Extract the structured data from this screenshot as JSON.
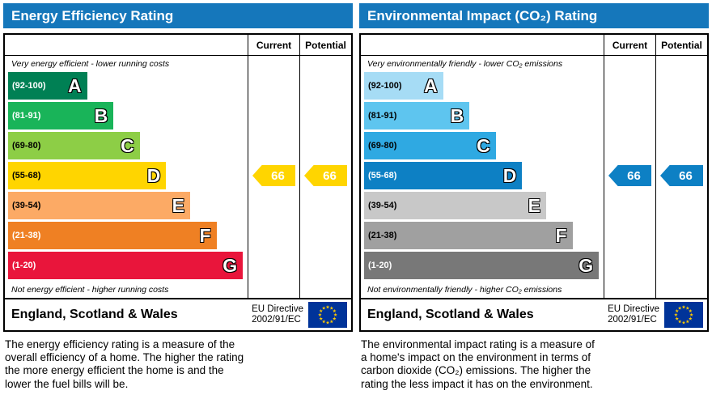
{
  "labels": {
    "current": "Current",
    "potential": "Potential"
  },
  "theme": {
    "header_bg": "#1577bb",
    "header_text": "#ffffff",
    "border_color": "#000000",
    "eu_flag_bg": "#003399",
    "eu_flag_stars": "#ffcc00"
  },
  "chart_data": [
    {
      "type": "bar",
      "title": "Energy Efficiency Rating",
      "top_caption": "Very energy efficient - lower running costs",
      "bottom_caption": "Not energy efficient - higher running costs",
      "categories": [
        "A",
        "B",
        "C",
        "D",
        "E",
        "F",
        "G"
      ],
      "ranges": [
        "(92-100)",
        "(81-91)",
        "(69-80)",
        "(55-68)",
        "(39-54)",
        "(21-38)",
        "(1-20)"
      ],
      "band_colors": [
        "#008054",
        "#19b459",
        "#8dce46",
        "#ffd500",
        "#fcaa65",
        "#ef8023",
        "#e9153b"
      ],
      "range_text_colors": [
        "#ffffff",
        "#ffffff",
        "#000000",
        "#000000",
        "#000000",
        "#ffffff",
        "#ffffff"
      ],
      "band_width_pct": [
        33,
        44,
        55,
        66,
        76,
        87,
        98
      ],
      "current": 66,
      "potential": 66,
      "current_band": "D",
      "potential_band": "D",
      "arrow_color": "#ffd500",
      "arrow_text_color": "#ffffff"
    },
    {
      "type": "bar",
      "title": "Environmental Impact (CO₂) Rating",
      "top_caption": "Very environmentally friendly - lower CO₂ emissions",
      "bottom_caption": "Not environmentally friendly - higher CO₂ emissions",
      "categories": [
        "A",
        "B",
        "C",
        "D",
        "E",
        "F",
        "G"
      ],
      "ranges": [
        "(92-100)",
        "(81-91)",
        "(69-80)",
        "(55-68)",
        "(39-54)",
        "(21-38)",
        "(1-20)"
      ],
      "band_colors": [
        "#a6dcf5",
        "#5ec5ef",
        "#2fa9e2",
        "#0d80c4",
        "#c8c8c8",
        "#a0a0a0",
        "#787878"
      ],
      "range_text_colors": [
        "#000000",
        "#000000",
        "#000000",
        "#ffffff",
        "#000000",
        "#000000",
        "#ffffff"
      ],
      "band_width_pct": [
        33,
        44,
        55,
        66,
        76,
        87,
        98
      ],
      "current": 66,
      "potential": 66,
      "current_band": "D",
      "potential_band": "D",
      "arrow_color": "#0d80c4",
      "arrow_text_color": "#ffffff"
    }
  ],
  "panels": [
    {
      "footer_region": "England, Scotland & Wales",
      "eu_directive_line1": "EU Directive",
      "eu_directive_line2": "2002/91/EC",
      "description_lines": [
        "The energy efficiency rating is a measure of the",
        "overall efficiency of a home. The higher the rating",
        "the more energy efficient the home is and the",
        "lower the fuel bills will be."
      ]
    },
    {
      "footer_region": "England, Scotland & Wales",
      "eu_directive_line1": "EU Directive",
      "eu_directive_line2": "2002/91/EC",
      "description_lines": [
        "The environmental impact rating is a measure of",
        "a home's impact on the environment in terms of",
        "carbon dioxide (CO₂) emissions. The higher the",
        "rating the less impact it has on the environment."
      ]
    }
  ]
}
